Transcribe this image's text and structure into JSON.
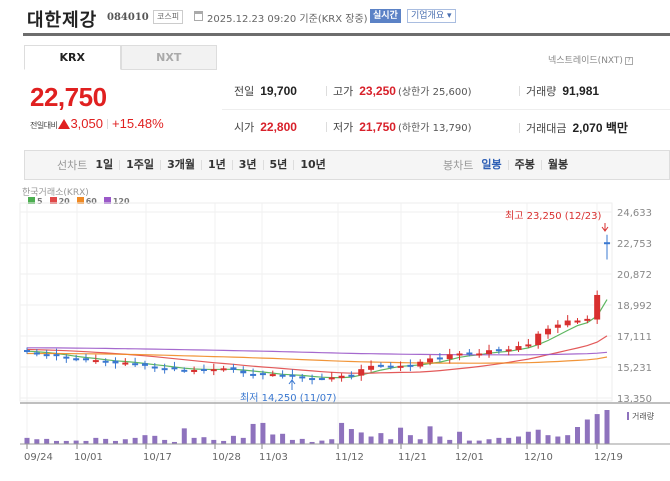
{
  "header": {
    "stock_name": "대한제강",
    "stock_code": "084010",
    "market_badge": "코스피",
    "datetime": "2025.12.23 09:20 기준(KRX 장중)",
    "realtime_button": "실시간",
    "company_overview_button": "기업개요 ▾"
  },
  "exchange_tabs": [
    {
      "label": "KRX",
      "active": true
    },
    {
      "label": "NXT",
      "active": false
    }
  ],
  "nxt_link": "넥스트레이드(NXT)",
  "nxt_help": "?",
  "price": {
    "current": "22,750",
    "change_label": "전일대비",
    "change_amount": "3,050",
    "change_percent": "+15.48%",
    "direction": "up",
    "up_color": "#e02020"
  },
  "stats": {
    "prev_close": {
      "label": "전일",
      "value": "19,700"
    },
    "open": {
      "label": "시가",
      "value": "22,800"
    },
    "high": {
      "label": "고가",
      "value": "23,250",
      "sub": "(상한가 25,600)"
    },
    "low": {
      "label": "저가",
      "value": "21,750",
      "sub": "(하한가 13,790)"
    },
    "volume": {
      "label": "거래량",
      "value": "91,981"
    },
    "trade_value": {
      "label": "거래대금",
      "value": "2,070 백만"
    }
  },
  "chart_toolbar": {
    "line_chart_label": "선차트",
    "line_periods": [
      "1일",
      "1주일",
      "3개월",
      "1년",
      "3년",
      "5년",
      "10년"
    ],
    "candle_chart_label": "봉차트",
    "candle_periods": [
      "일봉",
      "주봉",
      "월봉"
    ],
    "selected_candle_period": "일봉"
  },
  "chart": {
    "source_label": "한국거래소(KRX)",
    "legend": [
      {
        "label": "5",
        "color": "#4caf50"
      },
      {
        "label": "20",
        "color": "#e04848"
      },
      {
        "label": "60",
        "color": "#f08a24"
      },
      {
        "label": "120",
        "color": "#9b59c9"
      }
    ],
    "high_annotation": "최고 23,250 (12/23)",
    "low_annotation": "최저 14,250 (11/07)",
    "volume_legend": "거래량"
  },
  "chart_data": {
    "type": "candlestick",
    "title": "대한제강 일봉",
    "y_ticks": [
      "24,633",
      "22,753",
      "20,872",
      "18,992",
      "17,111",
      "15,231",
      "13,350"
    ],
    "ylim": [
      13350,
      24633
    ],
    "x_ticks": [
      "09/24",
      "10/01",
      "10/17",
      "10/28",
      "11/03",
      "11/12",
      "11/21",
      "12/01",
      "12/10",
      "12/19"
    ],
    "moving_averages": [
      "5",
      "20",
      "60",
      "120"
    ],
    "high": {
      "value": 23250,
      "date": "12/23"
    },
    "low": {
      "value": 14250,
      "date": "11/07"
    },
    "closes_approx": [
      16150,
      16050,
      15950,
      15900,
      15800,
      15700,
      15680,
      15650,
      15550,
      15450,
      15500,
      15400,
      15300,
      15200,
      15150,
      15100,
      15050,
      15050,
      15100,
      15100,
      15150,
      15050,
      14850,
      14800,
      14800,
      14800,
      14700,
      14700,
      14600,
      14500,
      14550,
      14600,
      14700,
      14750,
      15100,
      15300,
      15350,
      15300,
      15300,
      15300,
      15550,
      15750,
      15750,
      16000,
      16050,
      16000,
      16050,
      16250,
      16300,
      16300,
      16500,
      16600,
      17250,
      17550,
      17800,
      18050,
      18050,
      18150,
      19600,
      22750
    ],
    "volume_relative": [
      0.18,
      0.14,
      0.15,
      0.09,
      0.09,
      0.1,
      0.09,
      0.18,
      0.15,
      0.09,
      0.14,
      0.18,
      0.26,
      0.24,
      0.12,
      0.06,
      0.46,
      0.18,
      0.2,
      0.12,
      0.09,
      0.24,
      0.18,
      0.59,
      0.62,
      0.28,
      0.3,
      0.12,
      0.15,
      0.06,
      0.1,
      0.14,
      0.62,
      0.44,
      0.34,
      0.22,
      0.32,
      0.14,
      0.48,
      0.26,
      0.14,
      0.52,
      0.22,
      0.12,
      0.36,
      0.1,
      0.1,
      0.14,
      0.18,
      0.18,
      0.22,
      0.36,
      0.42,
      0.26,
      0.22,
      0.26,
      0.5,
      0.72,
      0.88,
      1.0
    ],
    "volume_label": "거래량"
  }
}
